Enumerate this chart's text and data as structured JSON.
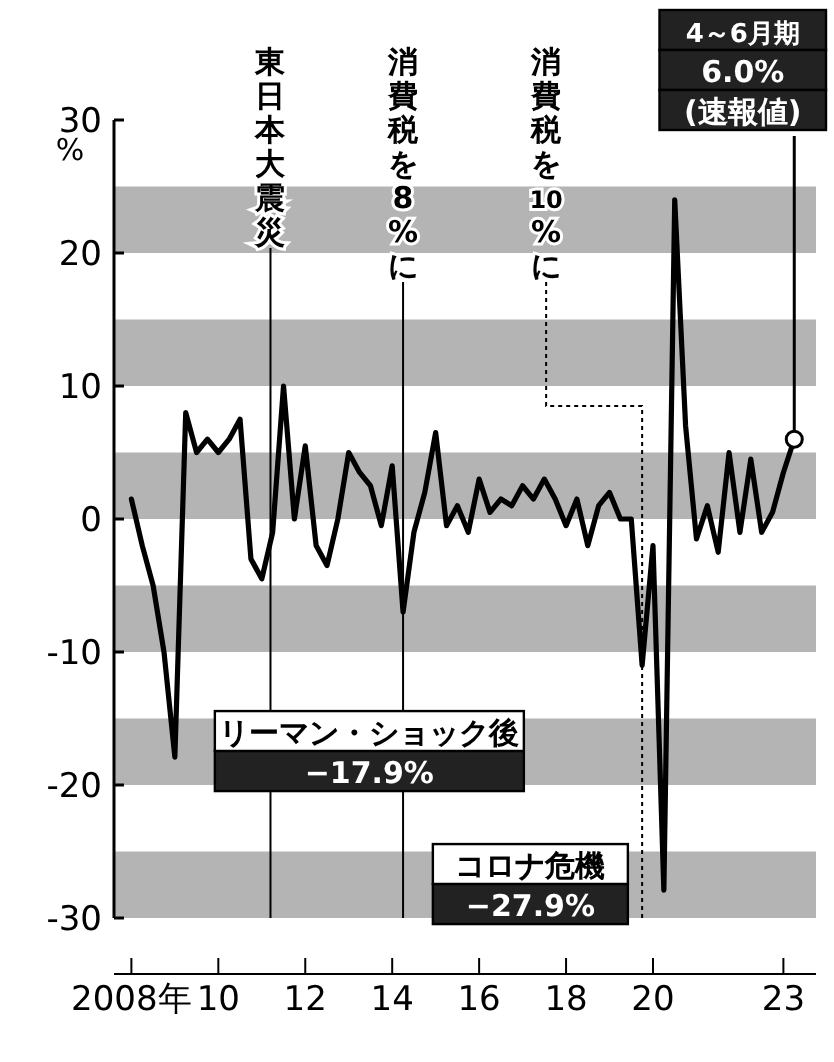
{
  "chart_data": {
    "type": "line",
    "x": [
      2008,
      2008.25,
      2008.5,
      2008.75,
      2009,
      2009.25,
      2009.5,
      2009.75,
      2010,
      2010.25,
      2010.5,
      2010.75,
      2011,
      2011.25,
      2011.5,
      2011.75,
      2012,
      2012.25,
      2012.5,
      2012.75,
      2013,
      2013.25,
      2013.5,
      2013.75,
      2014,
      2014.25,
      2014.5,
      2014.75,
      2015,
      2015.25,
      2015.5,
      2015.75,
      2016,
      2016.25,
      2016.5,
      2016.75,
      2017,
      2017.25,
      2017.5,
      2017.75,
      2018,
      2018.25,
      2018.5,
      2018.75,
      2019,
      2019.25,
      2019.5,
      2019.75,
      2020,
      2020.25,
      2020.5,
      2020.75,
      2021,
      2021.25,
      2021.5,
      2021.75,
      2022,
      2022.25,
      2022.5,
      2022.75,
      2023,
      2023.25
    ],
    "series": [
      {
        "color": "#000000",
        "values": [
          1.5,
          -2,
          -5,
          -10,
          -17.9,
          8,
          5,
          6,
          5,
          6,
          7.5,
          -3,
          -4.5,
          -1,
          10,
          0,
          5.5,
          -2,
          -3.5,
          0,
          5,
          3.5,
          2.5,
          -0.5,
          4,
          -7,
          -1,
          2,
          6.5,
          -0.5,
          1,
          -1,
          3,
          0.5,
          1.5,
          1,
          2.5,
          1.5,
          3,
          1.5,
          -0.5,
          1.5,
          -2,
          1,
          2,
          0,
          0,
          -11,
          -2,
          -27.9,
          24,
          7,
          -1.5,
          1,
          -2.5,
          5,
          -1,
          4.5,
          -1,
          0.5,
          3.5,
          6.0
        ]
      }
    ],
    "xlim": [
      2007.6,
      2023.75
    ],
    "xticks": [
      {
        "value": 2008,
        "label": "2008年"
      },
      {
        "value": 2010,
        "label": "10"
      },
      {
        "value": 2012,
        "label": "12"
      },
      {
        "value": 2014,
        "label": "14"
      },
      {
        "value": 2016,
        "label": "16"
      },
      {
        "value": 2018,
        "label": "18"
      },
      {
        "value": 2020,
        "label": "20"
      },
      {
        "value": 2023,
        "label": "23"
      }
    ],
    "ylim": [
      -30,
      30
    ],
    "yticks": [
      -30,
      -20,
      -10,
      0,
      10,
      20,
      30
    ],
    "ylabel": "%",
    "grid": false,
    "marker": "none",
    "line_style": "solid",
    "bands": [
      {
        "axis": "y",
        "from": 20,
        "to": 25,
        "color": "#b4b4b4"
      },
      {
        "axis": "y",
        "from": 10,
        "to": 15,
        "color": "#b4b4b4"
      },
      {
        "axis": "y",
        "from": 0,
        "to": 5,
        "color": "#b4b4b4"
      },
      {
        "axis": "y",
        "from": -10,
        "to": -5,
        "color": "#b4b4b4"
      },
      {
        "axis": "y",
        "from": -20,
        "to": -15,
        "color": "#b4b4b4"
      },
      {
        "axis": "y",
        "from": -30,
        "to": -25,
        "color": "#b4b4b4"
      }
    ],
    "ref_lines": [
      {
        "axis": "x",
        "value": 2011.2,
        "label": "東日本大震災",
        "line_style": "solid"
      },
      {
        "axis": "x",
        "value": 2014.25,
        "label": "消費税を8%に",
        "line_style": "solid"
      },
      {
        "axis": "x",
        "value": 2019.75,
        "label": "消費税を10%に",
        "line_style": "dotted"
      }
    ],
    "annotations": [
      {
        "text": "リーマン・ショック後\n−17.9%",
        "x": 2009,
        "y": -17.9
      },
      {
        "text": "コロナ危機\n−27.9%",
        "x": 2020.25,
        "y": -27.9
      },
      {
        "text": "4～6月期\n6.0%\n(速報値)",
        "x": 2023.25,
        "y": 6.0
      }
    ]
  }
}
